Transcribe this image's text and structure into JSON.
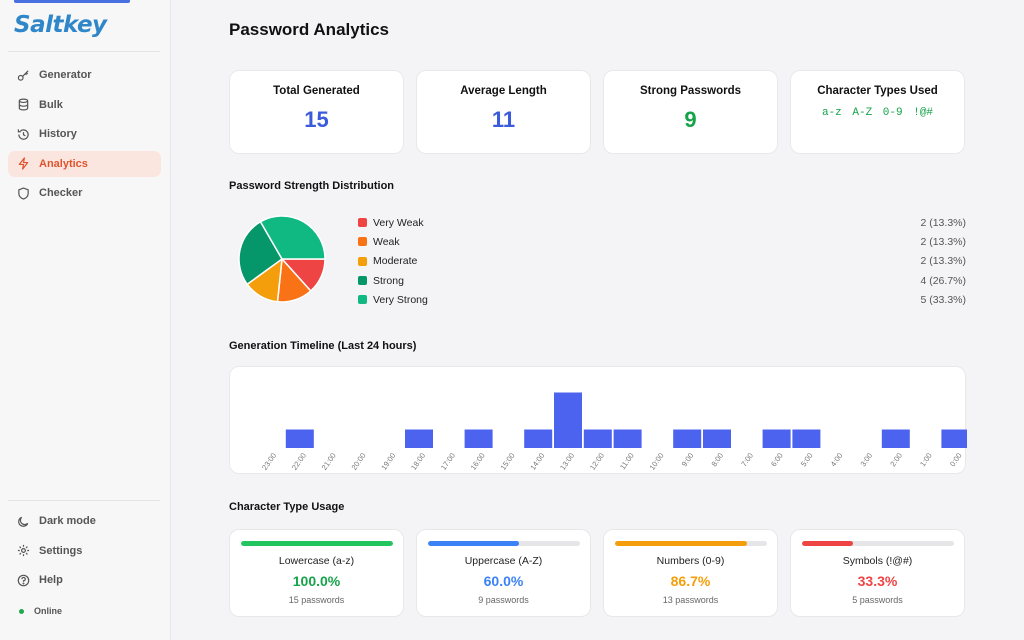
{
  "app": {
    "logo": "Saltkey"
  },
  "sidebar": {
    "items": [
      {
        "label": "Generator",
        "icon": "key-icon",
        "active": false
      },
      {
        "label": "Bulk",
        "icon": "database-icon",
        "active": false
      },
      {
        "label": "History",
        "icon": "history-icon",
        "active": false
      },
      {
        "label": "Analytics",
        "icon": "analytics-icon",
        "active": true
      },
      {
        "label": "Checker",
        "icon": "shield-icon",
        "active": false
      }
    ],
    "bottom_items": [
      {
        "label": "Dark mode",
        "icon": "moon-icon"
      },
      {
        "label": "Settings",
        "icon": "gear-icon"
      },
      {
        "label": "Help",
        "icon": "help-icon"
      }
    ],
    "status": "Online"
  },
  "page": {
    "title": "Password Analytics"
  },
  "stats": [
    {
      "label": "Total Generated",
      "value": "15",
      "color": "#3b5bdb"
    },
    {
      "label": "Average Length",
      "value": "11",
      "color": "#3b5bdb"
    },
    {
      "label": "Strong Passwords",
      "value": "9",
      "color": "#16a34a"
    },
    {
      "label": "Character Types Used",
      "types": [
        "a-z",
        "A-Z",
        "0-9",
        "!@#"
      ]
    }
  ],
  "strength": {
    "title": "Password Strength Distribution",
    "items": [
      {
        "label": "Very Weak",
        "value": "2 (13.3%)",
        "count": 2,
        "color": "#ef4444"
      },
      {
        "label": "Weak",
        "value": "2 (13.3%)",
        "count": 2,
        "color": "#f97316"
      },
      {
        "label": "Moderate",
        "value": "2 (13.3%)",
        "count": 2,
        "color": "#f59e0b"
      },
      {
        "label": "Strong",
        "value": "4 (26.7%)",
        "count": 4,
        "color": "#059669"
      },
      {
        "label": "Very Strong",
        "value": "5 (33.3%)",
        "count": 5,
        "color": "#10b981"
      }
    ]
  },
  "timeline": {
    "title": "Generation Timeline (Last 24 hours)",
    "bar_color": "#4c63f0"
  },
  "chart_data": {
    "type": "bar",
    "categories": [
      "23:00",
      "22:00",
      "21:00",
      "20:00",
      "19:00",
      "18:00",
      "17:00",
      "16:00",
      "15:00",
      "14:00",
      "13:00",
      "12:00",
      "11:00",
      "10:00",
      "9:00",
      "8:00",
      "7:00",
      "6:00",
      "5:00",
      "4:00",
      "3:00",
      "2:00",
      "1:00",
      "0:00"
    ],
    "values": [
      0,
      1,
      0,
      0,
      0,
      1,
      0,
      1,
      0,
      1,
      3,
      1,
      1,
      0,
      1,
      1,
      0,
      1,
      1,
      0,
      0,
      1,
      0,
      1
    ]
  },
  "usage": {
    "title": "Character Type Usage",
    "items": [
      {
        "label": "Lowercase (a-z)",
        "pct": "100.0%",
        "fraction": 1.0,
        "count": "15 passwords",
        "color": "#22c55e",
        "text_color": "#16a34a"
      },
      {
        "label": "Uppercase (A-Z)",
        "pct": "60.0%",
        "fraction": 0.6,
        "count": "9 passwords",
        "color": "#3b82f6",
        "text_color": "#3b82f6"
      },
      {
        "label": "Numbers (0-9)",
        "pct": "86.7%",
        "fraction": 0.867,
        "count": "13 passwords",
        "color": "#f59e0b",
        "text_color": "#f59e0b"
      },
      {
        "label": "Symbols (!@#)",
        "pct": "33.3%",
        "fraction": 0.333,
        "count": "5 passwords",
        "color": "#ef4444",
        "text_color": "#ef4444"
      }
    ]
  }
}
